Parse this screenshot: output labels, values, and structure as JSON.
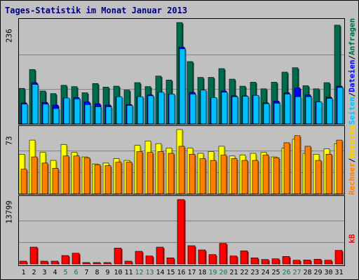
{
  "chart_data": [
    {
      "type": "bar",
      "title": "Tages-Statistik im Monat Januar 2013",
      "ylim": [
        0,
        236
      ],
      "ymax_label": "236",
      "right_label": [
        "Anfragen",
        "Dateien",
        "Seiten"
      ],
      "categories": [
        "1",
        "2",
        "3",
        "4",
        "5",
        "6",
        "7",
        "8",
        "9",
        "10",
        "11",
        "12",
        "13",
        "14",
        "15",
        "16",
        "17",
        "18",
        "19",
        "20",
        "21",
        "22",
        "23",
        "24",
        "25",
        "26",
        "27",
        "28",
        "29",
        "30",
        "31"
      ],
      "weekend_days": [
        "5",
        "6",
        "12",
        "13",
        "19",
        "20",
        "26",
        "27"
      ],
      "series": [
        {
          "name": "Anfragen",
          "color": "#006c4f",
          "values": [
            81,
            124,
            75,
            69,
            88,
            85,
            71,
            92,
            84,
            86,
            77,
            94,
            85,
            109,
            100,
            231,
            142,
            106,
            106,
            126,
            102,
            86,
            95,
            80,
            95,
            118,
            128,
            87,
            80,
            94,
            225
          ]
        },
        {
          "name": "Dateien",
          "color": "#0000ff",
          "values": [
            48,
            94,
            49,
            43,
            58,
            60,
            50,
            46,
            43,
            61,
            44,
            61,
            66,
            72,
            68,
            175,
            72,
            75,
            58,
            75,
            64,
            64,
            65,
            48,
            52,
            71,
            82,
            66,
            50,
            61,
            86
          ]
        },
        {
          "name": "Seiten",
          "color": "#00c0ff",
          "values": [
            45,
            90,
            45,
            35,
            59,
            57,
            44,
            39,
            39,
            62,
            42,
            62,
            64,
            72,
            68,
            171,
            68,
            77,
            60,
            72,
            62,
            63,
            65,
            46,
            47,
            68,
            62,
            62,
            50,
            58,
            83
          ]
        }
      ]
    },
    {
      "type": "bar",
      "ylim": [
        0,
        73
      ],
      "ymax_label": "73",
      "right_label": [
        "Besuche",
        "Rechner"
      ],
      "categories": [
        "1",
        "2",
        "3",
        "4",
        "5",
        "6",
        "7",
        "8",
        "9",
        "10",
        "11",
        "12",
        "13",
        "14",
        "15",
        "16",
        "17",
        "18",
        "19",
        "20",
        "21",
        "22",
        "23",
        "24",
        "25",
        "26",
        "27",
        "28",
        "29",
        "30",
        "31"
      ],
      "series": [
        {
          "name": "Besuche",
          "color": "#ffff00",
          "values": [
            45,
            61,
            47,
            38,
            56,
            47,
            42,
            34,
            35,
            40,
            38,
            55,
            60,
            57,
            52,
            73,
            52,
            46,
            48,
            54,
            43,
            44,
            46,
            47,
            42,
            52,
            62,
            46,
            45,
            51,
            57
          ]
        },
        {
          "name": "Rechner",
          "color": "#ff8000",
          "values": [
            28,
            42,
            35,
            29,
            43,
            43,
            41,
            33,
            32,
            36,
            36,
            48,
            47,
            48,
            46,
            54,
            45,
            40,
            38,
            44,
            40,
            38,
            38,
            44,
            41,
            58,
            66,
            54,
            38,
            45,
            61
          ]
        }
      ]
    },
    {
      "type": "bar",
      "ylim": [
        0,
        13799
      ],
      "ymax_label": "13799",
      "right_label": [
        "kB"
      ],
      "categories": [
        "1",
        "2",
        "3",
        "4",
        "5",
        "6",
        "7",
        "8",
        "9",
        "10",
        "11",
        "12",
        "13",
        "14",
        "15",
        "16",
        "17",
        "18",
        "19",
        "20",
        "21",
        "22",
        "23",
        "24",
        "25",
        "26",
        "27",
        "28",
        "29",
        "30",
        "31"
      ],
      "series": [
        {
          "name": "kB",
          "color": "#ff0000",
          "values": [
            600,
            3600,
            600,
            600,
            1800,
            2300,
            300,
            300,
            300,
            3400,
            600,
            2700,
            1700,
            3600,
            1300,
            13799,
            3900,
            3000,
            2000,
            4400,
            1700,
            2800,
            1300,
            950,
            1100,
            1600,
            800,
            850,
            1000,
            800,
            2900
          ]
        }
      ]
    }
  ]
}
